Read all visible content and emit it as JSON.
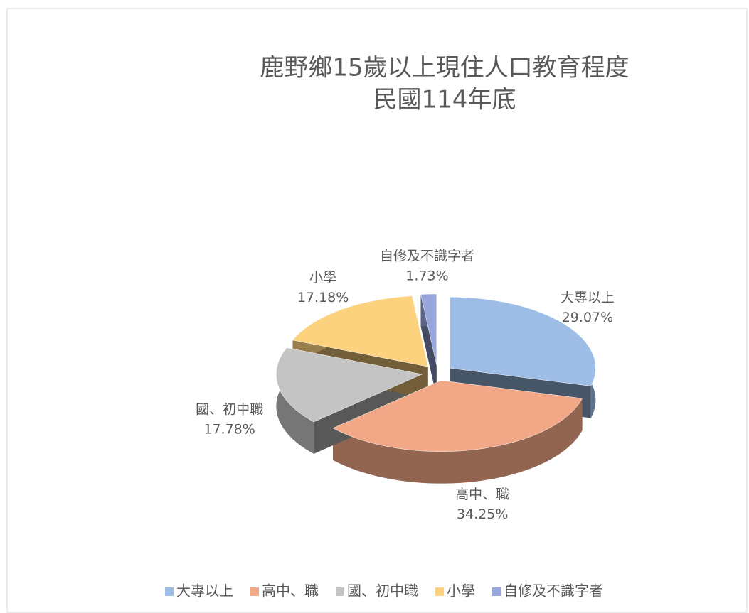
{
  "chart_data": {
    "type": "pie",
    "title": [
      "鹿野鄉15歲以上現住人口教育程度",
      "民國114年底"
    ],
    "categories": [
      "大專以上",
      "高中、職",
      "國、初中職",
      "小學",
      "自修及不識字者"
    ],
    "values": [
      29.07,
      34.25,
      17.78,
      17.18,
      1.73
    ],
    "value_labels": [
      "29.07%",
      "34.25%",
      "17.78%",
      "17.18%",
      "1.73%"
    ],
    "colors": [
      "#9dbde6",
      "#f2a886",
      "#c4c4c4",
      "#fdd27e",
      "#98a6dc"
    ],
    "legend": "bottom"
  }
}
